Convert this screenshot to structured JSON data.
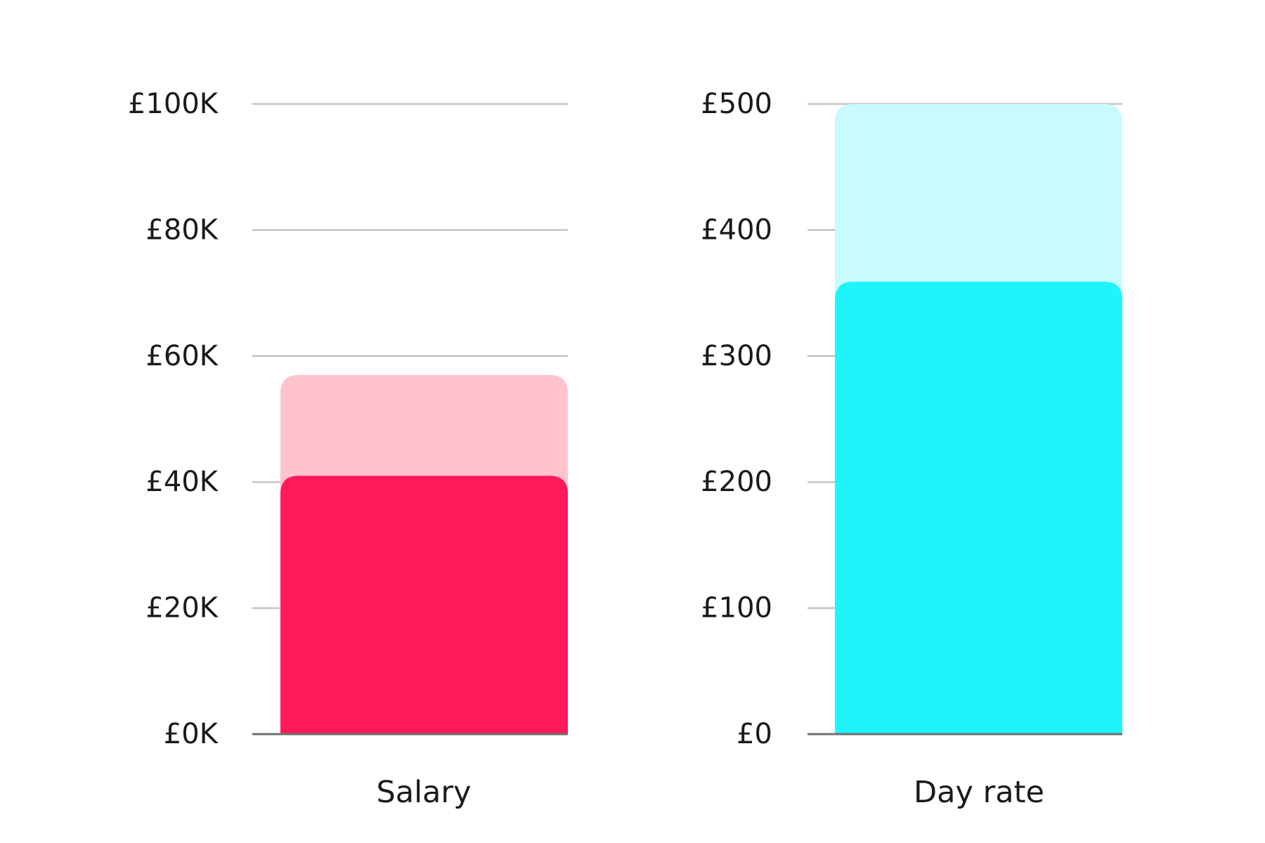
{
  "chart_data": [
    {
      "type": "bar",
      "categories": [
        "Salary"
      ],
      "series": [
        {
          "values": [
            57000
          ],
          "color": "#ffc3d0"
        },
        {
          "values": [
            41000
          ],
          "color": "#ff1a5a"
        }
      ],
      "ylim": [
        0,
        100000
      ],
      "yticks": [
        0,
        20000,
        40000,
        60000,
        80000,
        100000
      ],
      "ytick_labels": [
        "£0K",
        "£20K",
        "£40K",
        "£60K",
        "£80K",
        "£100K"
      ],
      "grid": true,
      "xlabel": "",
      "ylabel": ""
    },
    {
      "type": "bar",
      "categories": [
        "Day rate"
      ],
      "series": [
        {
          "values": [
            500
          ],
          "color": "#c9fafc"
        },
        {
          "values": [
            359
          ],
          "color": "#1ff4fb"
        }
      ],
      "ylim": [
        0,
        500
      ],
      "yticks": [
        0,
        100,
        200,
        300,
        400,
        500
      ],
      "ytick_labels": [
        "£0",
        "£100",
        "£200",
        "£300",
        "£400",
        "£500"
      ],
      "grid": true,
      "xlabel": "",
      "ylabel": ""
    }
  ],
  "colors": {
    "gridline": "#c4c4c4",
    "baseline": "#6e6e6e",
    "text": "#1a1a1a"
  }
}
